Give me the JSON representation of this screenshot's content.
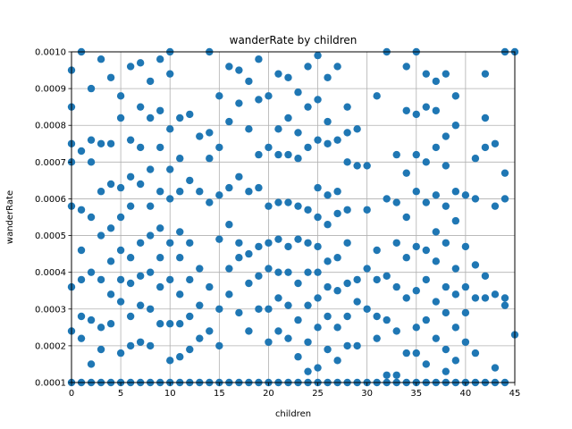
{
  "chart_data": {
    "type": "scatter",
    "title": "wanderRate by children",
    "xlabel": "children",
    "ylabel": "wanderRate",
    "xlim": [
      0,
      45
    ],
    "ylim": [
      0.0001,
      0.001
    ],
    "xticks": [
      "0",
      "5",
      "10",
      "15",
      "20",
      "25",
      "30",
      "35",
      "40",
      "45"
    ],
    "yticks": [
      "0.0001",
      "0.0002",
      "0.0003",
      "0.0004",
      "0.0005",
      "0.0006",
      "0.0007",
      "0.0008",
      "0.0009",
      "0.0010"
    ],
    "grid": true,
    "color": "#1f77b4",
    "points": [
      [
        0,
        0.00095
      ],
      [
        0,
        0.00085
      ],
      [
        0,
        0.00075
      ],
      [
        0,
        0.0007
      ],
      [
        0,
        0.00058
      ],
      [
        0,
        0.00036
      ],
      [
        0,
        0.00024
      ],
      [
        0,
        0.0001
      ],
      [
        1,
        0.001
      ],
      [
        1,
        0.00073
      ],
      [
        1,
        0.00057
      ],
      [
        1,
        0.00046
      ],
      [
        1,
        0.00038
      ],
      [
        1,
        0.00028
      ],
      [
        1,
        0.00022
      ],
      [
        1,
        0.0001
      ],
      [
        2,
        0.0009
      ],
      [
        2,
        0.00076
      ],
      [
        2,
        0.0007
      ],
      [
        2,
        0.00055
      ],
      [
        2,
        0.0004
      ],
      [
        2,
        0.00027
      ],
      [
        2,
        0.00015
      ],
      [
        2,
        0.0001
      ],
      [
        3,
        0.00098
      ],
      [
        3,
        0.00075
      ],
      [
        3,
        0.00062
      ],
      [
        3,
        0.0005
      ],
      [
        3,
        0.00038
      ],
      [
        3,
        0.00025
      ],
      [
        3,
        0.00019
      ],
      [
        3,
        0.0001
      ],
      [
        4,
        0.00093
      ],
      [
        4,
        0.00075
      ],
      [
        4,
        0.00064
      ],
      [
        4,
        0.00052
      ],
      [
        4,
        0.00043
      ],
      [
        4,
        0.00034
      ],
      [
        4,
        0.00026
      ],
      [
        4,
        0.0001
      ],
      [
        5,
        0.00088
      ],
      [
        5,
        0.00082
      ],
      [
        5,
        0.00063
      ],
      [
        5,
        0.00055
      ],
      [
        5,
        0.00046
      ],
      [
        5,
        0.00038
      ],
      [
        5,
        0.00032
      ],
      [
        5,
        0.00018
      ],
      [
        5,
        0.0001
      ],
      [
        6,
        0.00096
      ],
      [
        6,
        0.00076
      ],
      [
        6,
        0.00066
      ],
      [
        6,
        0.00058
      ],
      [
        6,
        0.00044
      ],
      [
        6,
        0.00037
      ],
      [
        6,
        0.00028
      ],
      [
        6,
        0.0002
      ],
      [
        6,
        0.0001
      ],
      [
        7,
        0.00097
      ],
      [
        7,
        0.00085
      ],
      [
        7,
        0.00074
      ],
      [
        7,
        0.00064
      ],
      [
        7,
        0.00048
      ],
      [
        7,
        0.00039
      ],
      [
        7,
        0.00031
      ],
      [
        7,
        0.00021
      ],
      [
        7,
        0.0001
      ],
      [
        8,
        0.00092
      ],
      [
        8,
        0.00082
      ],
      [
        8,
        0.00068
      ],
      [
        8,
        0.00058
      ],
      [
        8,
        0.0005
      ],
      [
        8,
        0.0004
      ],
      [
        8,
        0.0003
      ],
      [
        8,
        0.0002
      ],
      [
        8,
        0.0001
      ],
      [
        9,
        0.00098
      ],
      [
        9,
        0.00084
      ],
      [
        9,
        0.00074
      ],
      [
        9,
        0.00062
      ],
      [
        9,
        0.00052
      ],
      [
        9,
        0.00044
      ],
      [
        9,
        0.00036
      ],
      [
        9,
        0.00026
      ],
      [
        9,
        0.0001
      ],
      [
        10,
        0.001
      ],
      [
        10,
        0.00094
      ],
      [
        10,
        0.00079
      ],
      [
        10,
        0.00068
      ],
      [
        10,
        0.0006
      ],
      [
        10,
        0.00048
      ],
      [
        10,
        0.00038
      ],
      [
        10,
        0.00026
      ],
      [
        10,
        0.00016
      ],
      [
        10,
        0.0001
      ],
      [
        11,
        0.00082
      ],
      [
        11,
        0.00071
      ],
      [
        11,
        0.00062
      ],
      [
        11,
        0.00051
      ],
      [
        11,
        0.00044
      ],
      [
        11,
        0.00034
      ],
      [
        11,
        0.00026
      ],
      [
        11,
        0.00017
      ],
      [
        11,
        0.0001
      ],
      [
        12,
        0.00083
      ],
      [
        12,
        0.00065
      ],
      [
        12,
        0.00048
      ],
      [
        12,
        0.00038
      ],
      [
        12,
        0.00028
      ],
      [
        12,
        0.00019
      ],
      [
        12,
        0.0001
      ],
      [
        13,
        0.00077
      ],
      [
        13,
        0.00062
      ],
      [
        13,
        0.00041
      ],
      [
        13,
        0.00031
      ],
      [
        13,
        0.00022
      ],
      [
        13,
        0.0001
      ],
      [
        14,
        0.001
      ],
      [
        14,
        0.00078
      ],
      [
        14,
        0.00071
      ],
      [
        14,
        0.00059
      ],
      [
        14,
        0.00036
      ],
      [
        14,
        0.00024
      ],
      [
        14,
        0.0001
      ],
      [
        15,
        0.00088
      ],
      [
        15,
        0.00074
      ],
      [
        15,
        0.00061
      ],
      [
        15,
        0.00049
      ],
      [
        15,
        0.0003
      ],
      [
        15,
        0.0002
      ],
      [
        15,
        0.0001
      ],
      [
        16,
        0.00096
      ],
      [
        16,
        0.00081
      ],
      [
        16,
        0.00063
      ],
      [
        16,
        0.00053
      ],
      [
        16,
        0.00041
      ],
      [
        16,
        0.00034
      ],
      [
        16,
        0.0001
      ],
      [
        17,
        0.00095
      ],
      [
        17,
        0.00086
      ],
      [
        17,
        0.00066
      ],
      [
        17,
        0.00048
      ],
      [
        17,
        0.00044
      ],
      [
        17,
        0.00029
      ],
      [
        17,
        0.0001
      ],
      [
        18,
        0.00092
      ],
      [
        18,
        0.00079
      ],
      [
        18,
        0.00062
      ],
      [
        18,
        0.00045
      ],
      [
        18,
        0.00037
      ],
      [
        18,
        0.00024
      ],
      [
        18,
        0.0001
      ],
      [
        19,
        0.00098
      ],
      [
        19,
        0.00087
      ],
      [
        19,
        0.00072
      ],
      [
        19,
        0.00063
      ],
      [
        19,
        0.00047
      ],
      [
        19,
        0.00039
      ],
      [
        19,
        0.0003
      ],
      [
        19,
        0.0001
      ],
      [
        20,
        0.00088
      ],
      [
        20,
        0.00074
      ],
      [
        20,
        0.00058
      ],
      [
        20,
        0.00048
      ],
      [
        20,
        0.00041
      ],
      [
        20,
        0.0003
      ],
      [
        20,
        0.00021
      ],
      [
        20,
        0.0001
      ],
      [
        21,
        0.00094
      ],
      [
        21,
        0.00079
      ],
      [
        21,
        0.00072
      ],
      [
        21,
        0.00059
      ],
      [
        21,
        0.00049
      ],
      [
        21,
        0.0004
      ],
      [
        21,
        0.00033
      ],
      [
        21,
        0.00024
      ],
      [
        21,
        0.0001
      ],
      [
        22,
        0.00093
      ],
      [
        22,
        0.00082
      ],
      [
        22,
        0.00072
      ],
      [
        22,
        0.00059
      ],
      [
        22,
        0.00047
      ],
      [
        22,
        0.0004
      ],
      [
        22,
        0.00031
      ],
      [
        22,
        0.00022
      ],
      [
        22,
        0.0001
      ],
      [
        23,
        0.00089
      ],
      [
        23,
        0.00078
      ],
      [
        23,
        0.00071
      ],
      [
        23,
        0.00058
      ],
      [
        23,
        0.00049
      ],
      [
        23,
        0.00037
      ],
      [
        23,
        0.00027
      ],
      [
        23,
        0.00017
      ],
      [
        23,
        0.0001
      ],
      [
        24,
        0.00096
      ],
      [
        24,
        0.00085
      ],
      [
        24,
        0.00074
      ],
      [
        24,
        0.00057
      ],
      [
        24,
        0.00048
      ],
      [
        24,
        0.0004
      ],
      [
        24,
        0.00031
      ],
      [
        24,
        0.00021
      ],
      [
        24,
        0.00013
      ],
      [
        24,
        0.0001
      ],
      [
        25,
        0.00099
      ],
      [
        25,
        0.00087
      ],
      [
        25,
        0.00076
      ],
      [
        25,
        0.00063
      ],
      [
        25,
        0.00055
      ],
      [
        25,
        0.00047
      ],
      [
        25,
        0.0004
      ],
      [
        25,
        0.00033
      ],
      [
        25,
        0.00025
      ],
      [
        25,
        0.00014
      ],
      [
        25,
        0.0001
      ],
      [
        26,
        0.00093
      ],
      [
        26,
        0.00081
      ],
      [
        26,
        0.00075
      ],
      [
        26,
        0.00061
      ],
      [
        26,
        0.00053
      ],
      [
        26,
        0.00043
      ],
      [
        26,
        0.00036
      ],
      [
        26,
        0.00028
      ],
      [
        26,
        0.00019
      ],
      [
        26,
        0.0001
      ],
      [
        27,
        0.00096
      ],
      [
        27,
        0.00076
      ],
      [
        27,
        0.00062
      ],
      [
        27,
        0.00056
      ],
      [
        27,
        0.00044
      ],
      [
        27,
        0.00035
      ],
      [
        27,
        0.00025
      ],
      [
        27,
        0.00016
      ],
      [
        27,
        0.0001
      ],
      [
        28,
        0.00085
      ],
      [
        28,
        0.00078
      ],
      [
        28,
        0.0007
      ],
      [
        28,
        0.00057
      ],
      [
        28,
        0.00048
      ],
      [
        28,
        0.00037
      ],
      [
        28,
        0.00028
      ],
      [
        28,
        0.0002
      ],
      [
        28,
        0.0001
      ],
      [
        29,
        0.00079
      ],
      [
        29,
        0.00069
      ],
      [
        29,
        0.00038
      ],
      [
        29,
        0.00032
      ],
      [
        29,
        0.0002
      ],
      [
        29,
        0.0001
      ],
      [
        30,
        0.00069
      ],
      [
        30,
        0.00057
      ],
      [
        30,
        0.00041
      ],
      [
        30,
        0.0003
      ],
      [
        30,
        0.0001
      ],
      [
        31,
        0.00088
      ],
      [
        31,
        0.00046
      ],
      [
        31,
        0.00038
      ],
      [
        31,
        0.00028
      ],
      [
        31,
        0.00022
      ],
      [
        31,
        0.0001
      ],
      [
        32,
        0.001
      ],
      [
        32,
        0.0006
      ],
      [
        32,
        0.00039
      ],
      [
        32,
        0.00027
      ],
      [
        32,
        0.00012
      ],
      [
        32,
        0.0001
      ],
      [
        33,
        0.00072
      ],
      [
        33,
        0.00059
      ],
      [
        33,
        0.00048
      ],
      [
        33,
        0.00036
      ],
      [
        33,
        0.00024
      ],
      [
        33,
        0.00012
      ],
      [
        33,
        0.0001
      ],
      [
        34,
        0.00096
      ],
      [
        34,
        0.00084
      ],
      [
        34,
        0.00067
      ],
      [
        34,
        0.00055
      ],
      [
        34,
        0.00044
      ],
      [
        34,
        0.00033
      ],
      [
        34,
        0.00018
      ],
      [
        34,
        0.0001
      ],
      [
        35,
        0.001
      ],
      [
        35,
        0.00083
      ],
      [
        35,
        0.00072
      ],
      [
        35,
        0.00062
      ],
      [
        35,
        0.00047
      ],
      [
        35,
        0.00035
      ],
      [
        35,
        0.00025
      ],
      [
        35,
        0.00018
      ],
      [
        35,
        0.0001
      ],
      [
        36,
        0.00094
      ],
      [
        36,
        0.00085
      ],
      [
        36,
        0.0007
      ],
      [
        36,
        0.00059
      ],
      [
        36,
        0.00046
      ],
      [
        36,
        0.00038
      ],
      [
        36,
        0.00027
      ],
      [
        36,
        0.00015
      ],
      [
        36,
        0.0001
      ],
      [
        37,
        0.00092
      ],
      [
        37,
        0.00084
      ],
      [
        37,
        0.00074
      ],
      [
        37,
        0.00061
      ],
      [
        37,
        0.00051
      ],
      [
        37,
        0.00043
      ],
      [
        37,
        0.00032
      ],
      [
        37,
        0.00022
      ],
      [
        37,
        0.0001
      ],
      [
        38,
        0.00094
      ],
      [
        38,
        0.00077
      ],
      [
        38,
        0.00069
      ],
      [
        38,
        0.00058
      ],
      [
        38,
        0.00048
      ],
      [
        38,
        0.00036
      ],
      [
        38,
        0.00029
      ],
      [
        38,
        0.00019
      ],
      [
        38,
        0.00013
      ],
      [
        38,
        0.0001
      ],
      [
        39,
        0.00088
      ],
      [
        39,
        0.0008
      ],
      [
        39,
        0.00062
      ],
      [
        39,
        0.00054
      ],
      [
        39,
        0.00041
      ],
      [
        39,
        0.00034
      ],
      [
        39,
        0.00025
      ],
      [
        39,
        0.00016
      ],
      [
        39,
        0.0001
      ],
      [
        40,
        0.00061
      ],
      [
        40,
        0.00047
      ],
      [
        40,
        0.00036
      ],
      [
        40,
        0.00029
      ],
      [
        40,
        0.00021
      ],
      [
        40,
        0.0001
      ],
      [
        41,
        0.00071
      ],
      [
        41,
        0.0006
      ],
      [
        41,
        0.00042
      ],
      [
        41,
        0.00033
      ],
      [
        41,
        0.00018
      ],
      [
        41,
        0.0001
      ],
      [
        42,
        0.00094
      ],
      [
        42,
        0.00082
      ],
      [
        42,
        0.00074
      ],
      [
        42,
        0.00039
      ],
      [
        42,
        0.00033
      ],
      [
        42,
        0.0001
      ],
      [
        43,
        0.00075
      ],
      [
        43,
        0.00058
      ],
      [
        43,
        0.00034
      ],
      [
        43,
        0.00014
      ],
      [
        43,
        0.0001
      ],
      [
        44,
        0.001
      ],
      [
        44,
        0.00067
      ],
      [
        44,
        0.0006
      ],
      [
        44,
        0.00033
      ],
      [
        44,
        0.00031
      ],
      [
        44,
        0.0001
      ],
      [
        45,
        0.00023
      ],
      [
        45,
        0.001
      ]
    ]
  }
}
